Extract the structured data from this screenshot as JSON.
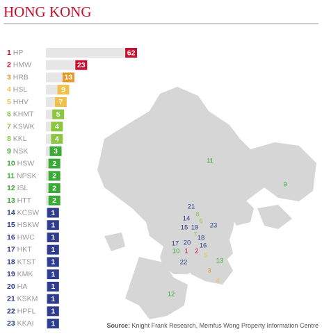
{
  "chart_data": {
    "type": "ranked-bar",
    "title": "HONG KONG",
    "ranks": [
      1,
      2,
      3,
      4,
      5,
      6,
      7,
      8,
      9,
      10,
      11,
      12,
      13,
      14,
      15,
      16,
      17,
      18,
      19,
      20,
      21,
      22,
      23
    ],
    "categories": [
      "HP",
      "HMW",
      "HRB",
      "HSL",
      "HHV",
      "KHMT",
      "KSWK",
      "KKL",
      "NSK",
      "HSW",
      "NPSK",
      "ISL",
      "HTT",
      "KCSW",
      "HSKW",
      "HWC",
      "HKT",
      "KTST",
      "KMK",
      "HA",
      "KSKM",
      "HPFL",
      "KKAI"
    ],
    "values": [
      62,
      23,
      13,
      9,
      7,
      5,
      4,
      4,
      3,
      2,
      2,
      2,
      2,
      1,
      1,
      1,
      1,
      1,
      1,
      1,
      1,
      1,
      1
    ],
    "colors": [
      "#c8102e",
      "#c8102e",
      "#e59a2f",
      "#f0c04a",
      "#f0c04a",
      "#8cc63f",
      "#8cc63f",
      "#8cc63f",
      "#3aa935",
      "#3aa935",
      "#3aa935",
      "#3aa935",
      "#3aa935",
      "#2e3d8f",
      "#2e3d8f",
      "#2e3d8f",
      "#2e3d8f",
      "#2e3d8f",
      "#2e3d8f",
      "#2e3d8f",
      "#2e3d8f",
      "#2e3d8f",
      "#2e3d8f"
    ],
    "source_label": "Source:",
    "source": "Knight Frank Research, Memfus Wong Property Information Centre"
  }
}
